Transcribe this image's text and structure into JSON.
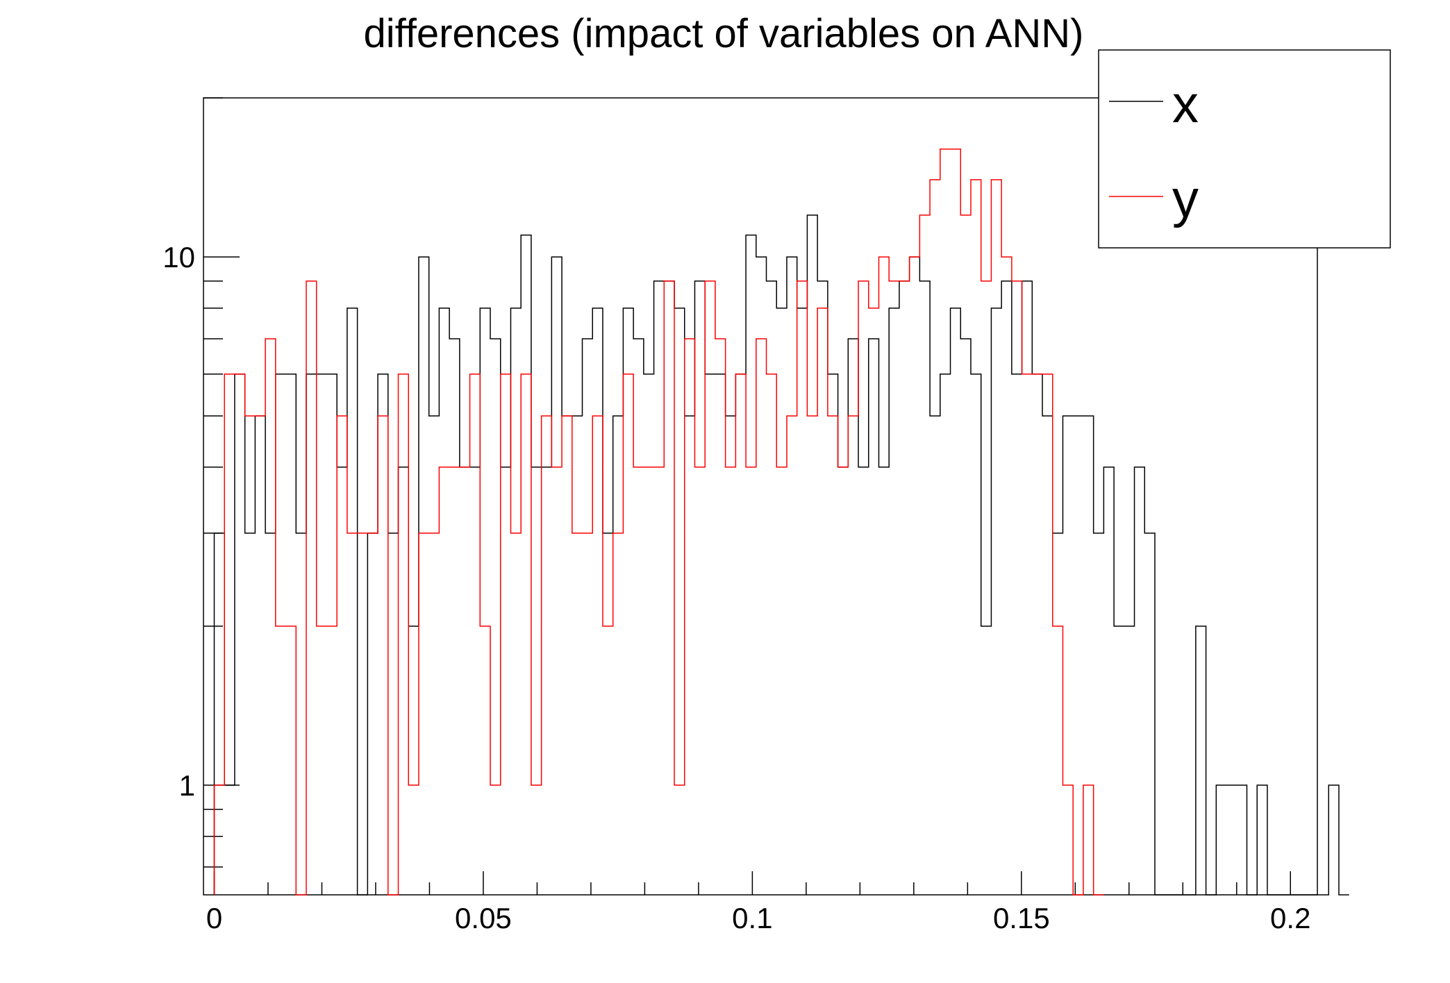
{
  "chart_data": {
    "type": "histogram",
    "title": "differences (impact of variables on ANN)",
    "xlabel": "",
    "ylabel": "",
    "xlim": [
      -0.002,
      0.205
    ],
    "ylim": [
      0.62,
      20
    ],
    "yscale": "log",
    "bin_start": 0.0,
    "bin_width": 0.0019,
    "x_ticks": [
      "0",
      "0.05",
      "0.1",
      "0.15",
      "0.2"
    ],
    "x_tick_values": [
      0,
      0.05,
      0.1,
      0.15,
      0.2
    ],
    "y_ticks": [
      "1",
      "10"
    ],
    "y_tick_values": [
      1,
      10
    ],
    "grid": false,
    "legend_position": "top-right",
    "series": [
      {
        "name": "x",
        "color": "#000000",
        "values": [
          3,
          1,
          6,
          3,
          5,
          3,
          6,
          6,
          3,
          6,
          6,
          6,
          4,
          8,
          0,
          3,
          6,
          3,
          4,
          2,
          10,
          5,
          8,
          7,
          4,
          4,
          8,
          7,
          4,
          8,
          11,
          4,
          4,
          10,
          5,
          5,
          7,
          8,
          3,
          5,
          8,
          7,
          6,
          9,
          9,
          8,
          5,
          9,
          6,
          6,
          5,
          6,
          11,
          10,
          9,
          8,
          10,
          8,
          12,
          9,
          6,
          4,
          7,
          4,
          7,
          4,
          8,
          9,
          10,
          9,
          5,
          6,
          8,
          7,
          6,
          2,
          8,
          9,
          6,
          9,
          6,
          5,
          3,
          5,
          5,
          5,
          3,
          4,
          2,
          2,
          4,
          3,
          0,
          0,
          0,
          0,
          2,
          0,
          1,
          1,
          1,
          0,
          1,
          0,
          0,
          0,
          0,
          0,
          0,
          1,
          0
        ]
      },
      {
        "name": "y",
        "color": "#ff0000",
        "values": [
          1,
          6,
          6,
          5,
          5,
          7,
          2,
          2,
          0,
          9,
          2,
          2,
          5,
          3,
          3,
          3,
          5,
          0,
          6,
          1,
          3,
          3,
          4,
          4,
          4,
          6,
          2,
          1,
          6,
          3,
          6,
          1,
          5,
          4,
          5,
          3,
          3,
          5,
          2,
          3,
          6,
          4,
          4,
          4,
          9,
          1,
          7,
          4,
          9,
          7,
          4,
          6,
          4,
          7,
          6,
          4,
          5,
          9,
          5,
          8,
          5,
          4,
          5,
          9,
          8,
          10,
          9,
          9,
          10,
          12,
          14,
          16,
          16,
          12,
          14,
          9,
          14,
          10,
          9,
          6,
          6,
          6,
          2,
          1,
          0,
          1,
          0
        ]
      }
    ]
  }
}
